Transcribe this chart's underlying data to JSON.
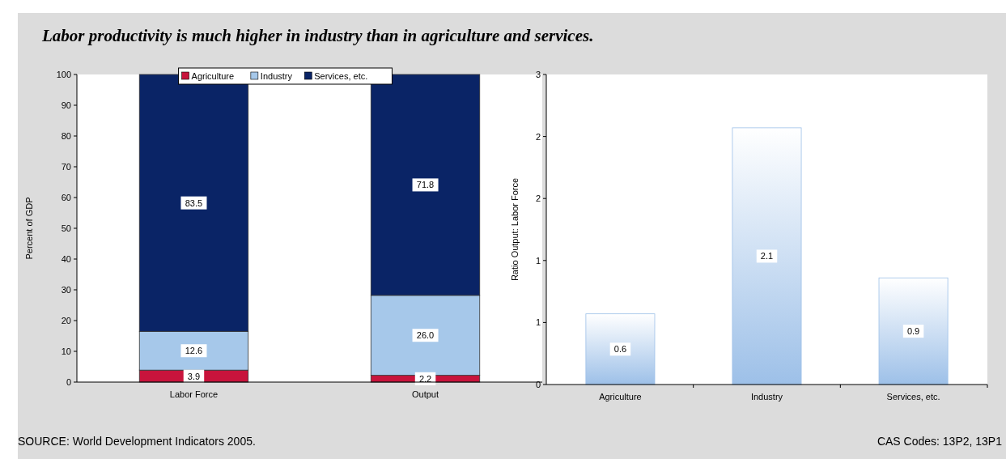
{
  "chart_data": [
    {
      "type": "bar",
      "title": "Labor productivity is much higher in industry than in agriculture and services.",
      "categories": [
        "Labor Force",
        "Output"
      ],
      "stacked": true,
      "series": [
        {
          "name": "Agriculture",
          "color": "#c8143c",
          "values": [
            3.9,
            2.2
          ],
          "value_labels": [
            "3.9",
            "2.2"
          ]
        },
        {
          "name": "Industry",
          "color": "#a6c8ea",
          "values": [
            12.6,
            26.0
          ],
          "value_labels": [
            "12.6",
            "26.0"
          ]
        },
        {
          "name": "Services, etc.",
          "color": "#0a2466",
          "values": [
            83.5,
            71.8
          ],
          "value_labels": [
            "83.5",
            "71.8"
          ]
        }
      ],
      "ylabel": "Percent of GDP",
      "ylim": [
        0,
        100
      ],
      "yticks": [
        0,
        10,
        20,
        30,
        40,
        50,
        60,
        70,
        80,
        90,
        100
      ],
      "legend": "top",
      "grid": false,
      "annotations": [
        "SOURCE: World Development Indicators 2005."
      ]
    },
    {
      "type": "bar",
      "categories": [
        "Agriculture",
        "Industry",
        "Services, etc."
      ],
      "values": [
        0.57,
        2.07,
        0.86
      ],
      "value_labels": [
        "0.6",
        "2.1",
        "0.9"
      ],
      "color": "#9dc0e8",
      "ylabel": "Ratio Output: Labor Force",
      "ylim": [
        0,
        2.5
      ],
      "yticks": [
        0,
        {
          "value": 0.5,
          "label": "1"
        },
        1,
        {
          "value": 1.5,
          "label": "2"
        },
        2,
        {
          "value": 2.5,
          "label": "3"
        }
      ],
      "grid": false,
      "annotations": [
        "CAS Codes: 13P2, 13P1"
      ]
    }
  ]
}
